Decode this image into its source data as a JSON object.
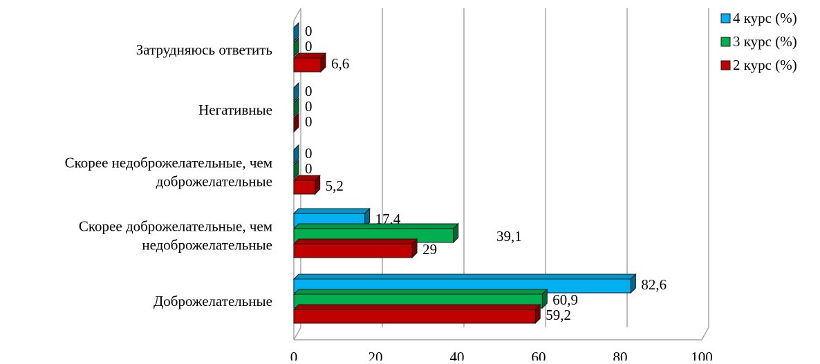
{
  "chart_data": {
    "type": "bar",
    "orientation": "horizontal",
    "categories": [
      "Доброжелательные",
      "Скорее доброжелательные, чем недоброжелательные",
      "Скорее недоброжелательные, чем доброжелательные",
      "Негативные",
      "Затрудняюсь ответить"
    ],
    "category_lines": [
      [
        "Доброжелательные"
      ],
      [
        "Скорее доброжелательные, чем",
        "недоброжелательные"
      ],
      [
        "Скорее недоброжелательные, чем",
        "доброжелательные"
      ],
      [
        "Негативные"
      ],
      [
        "Затрудняюсь ответить"
      ]
    ],
    "series": [
      {
        "name": "4 курс (%)",
        "values": [
          82.6,
          17.4,
          0,
          0,
          0
        ],
        "labels": [
          "82,6",
          "17,4",
          "0",
          "0",
          "0"
        ],
        "color": "#00b0f0"
      },
      {
        "name": "3 курс (%)",
        "values": [
          60.9,
          39.1,
          0,
          0,
          0
        ],
        "labels": [
          "60,9",
          "39,1",
          "0",
          "0",
          "0"
        ],
        "color": "#00b050"
      },
      {
        "name": "2 курс (%)",
        "values": [
          59.2,
          29,
          5.2,
          0,
          6.6
        ],
        "labels": [
          "59,2",
          "29",
          "5,2",
          "0",
          "6,6"
        ],
        "color": "#c00000"
      }
    ],
    "xlim": [
      0,
      100
    ],
    "x_ticks": [
      "0",
      "20",
      "40",
      "60",
      "80",
      "100"
    ],
    "grid": true,
    "legend_position": "top-right",
    "style": "3d-clustered-bar"
  }
}
